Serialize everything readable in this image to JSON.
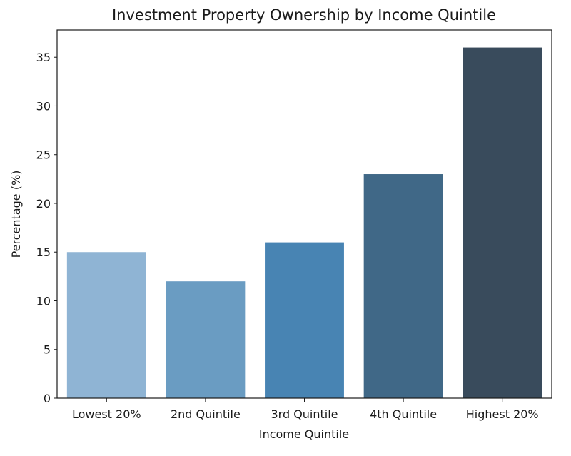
{
  "chart_data": {
    "type": "bar",
    "title": "Investment Property Ownership by Income Quintile",
    "xlabel": "Income Quintile",
    "ylabel": "Percentage (%)",
    "categories": [
      "Lowest 20%",
      "2nd Quintile",
      "3rd Quintile",
      "4th Quintile",
      "Highest 20%"
    ],
    "values": [
      15,
      12,
      16,
      23,
      36
    ],
    "colors": [
      "#8fb4d4",
      "#6a9cc2",
      "#4884b3",
      "#406887",
      "#394b5c"
    ],
    "ylim": [
      0,
      37.8
    ],
    "yticks": [
      0,
      5,
      10,
      15,
      20,
      25,
      30,
      35
    ],
    "grid": false,
    "legend": "none"
  }
}
